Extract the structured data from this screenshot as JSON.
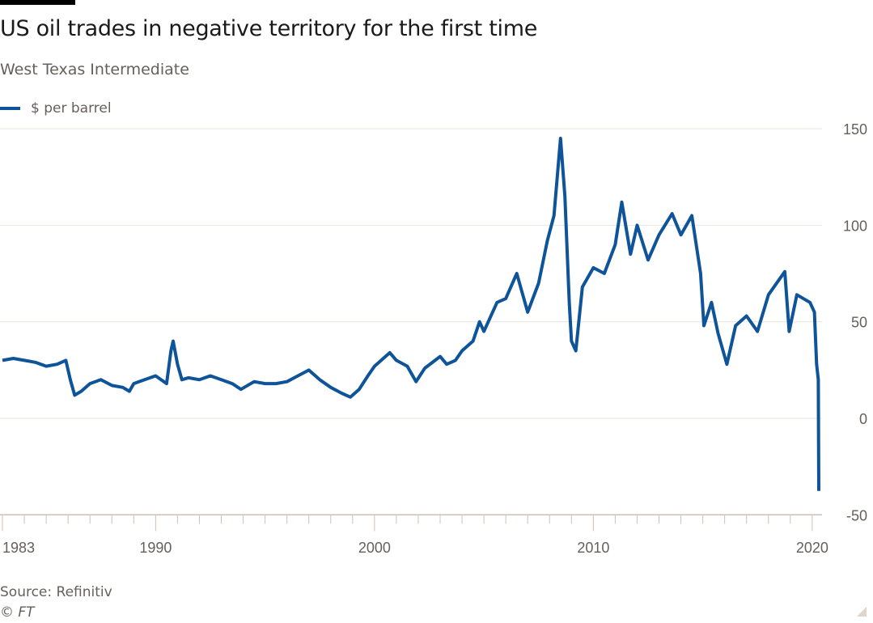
{
  "chart_data": {
    "type": "line",
    "title": "US oil trades in negative territory for the first time",
    "subtitle": "West Texas Intermediate",
    "legend": [
      {
        "name": "$ per barrel",
        "color": "#0f5499"
      }
    ],
    "source": "Source: Refinitiv",
    "credit": "© FT",
    "xlim": [
      1983,
      2020.4
    ],
    "ylim": [
      -50,
      150
    ],
    "yticks": [
      150,
      100,
      50,
      0,
      -50
    ],
    "xticks": [
      1983,
      1990,
      2000,
      2010,
      2020
    ],
    "xtick_labels": [
      "1983",
      "1990",
      "2000",
      "2010",
      "2020"
    ],
    "ytick_labels": [
      "150",
      "100",
      "50",
      "0",
      "-50"
    ],
    "grid": true,
    "series": [
      {
        "name": "$ per barrel",
        "x": [
          1983.0,
          1983.5,
          1984.0,
          1984.5,
          1985.0,
          1985.5,
          1985.9,
          1986.1,
          1986.3,
          1986.6,
          1987.0,
          1987.5,
          1988.0,
          1988.5,
          1988.8,
          1989.0,
          1989.5,
          1990.0,
          1990.5,
          1990.7,
          1990.8,
          1991.0,
          1991.2,
          1991.5,
          1992.0,
          1992.5,
          1993.0,
          1993.5,
          1993.9,
          1994.5,
          1995.0,
          1995.5,
          1996.0,
          1996.5,
          1997.0,
          1997.5,
          1998.0,
          1998.5,
          1998.9,
          1999.3,
          1999.7,
          2000.0,
          2000.7,
          2001.0,
          2001.5,
          2001.9,
          2002.3,
          2003.0,
          2003.3,
          2003.7,
          2004.0,
          2004.5,
          2004.8,
          2005.0,
          2005.6,
          2006.0,
          2006.5,
          2007.0,
          2007.5,
          2007.9,
          2008.2,
          2008.5,
          2008.7,
          2008.9,
          2009.0,
          2009.2,
          2009.5,
          2010.0,
          2010.5,
          2011.0,
          2011.3,
          2011.7,
          2012.0,
          2012.5,
          2013.0,
          2013.6,
          2014.0,
          2014.5,
          2014.9,
          2015.05,
          2015.4,
          2015.7,
          2016.1,
          2016.5,
          2017.0,
          2017.5,
          2018.0,
          2018.75,
          2018.95,
          2019.3,
          2019.9,
          2020.1,
          2020.2,
          2020.28,
          2020.3
        ],
        "y": [
          30,
          31,
          30,
          29,
          27,
          28,
          30,
          20,
          12,
          14,
          18,
          20,
          17,
          16,
          14,
          18,
          20,
          22,
          18,
          35,
          40,
          28,
          20,
          21,
          20,
          22,
          20,
          18,
          15,
          19,
          18,
          18,
          19,
          22,
          25,
          20,
          16,
          13,
          11,
          15,
          22,
          27,
          34,
          30,
          27,
          19,
          26,
          32,
          28,
          30,
          35,
          40,
          50,
          45,
          60,
          62,
          75,
          55,
          70,
          92,
          105,
          145,
          115,
          60,
          40,
          35,
          68,
          78,
          75,
          90,
          112,
          85,
          100,
          82,
          95,
          106,
          95,
          105,
          75,
          48,
          60,
          44,
          28,
          48,
          53,
          45,
          64,
          76,
          45,
          64,
          60,
          55,
          28,
          20,
          -37.6
        ]
      }
    ]
  }
}
